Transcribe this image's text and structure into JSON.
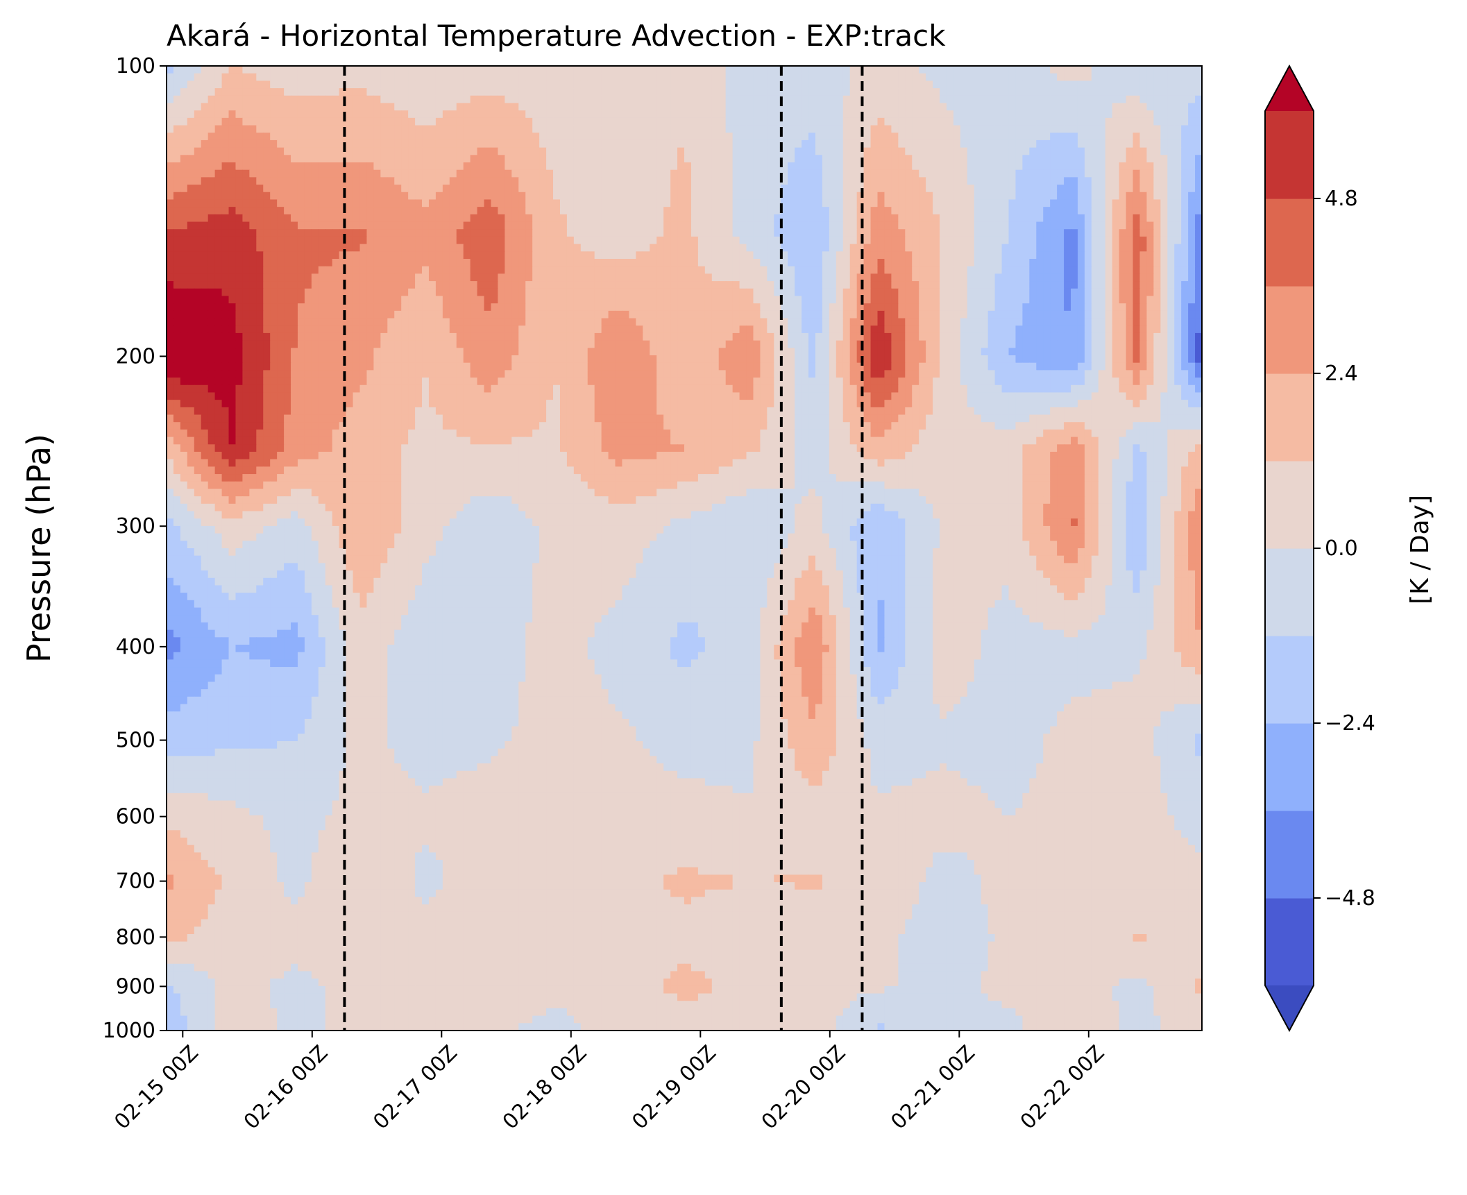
{
  "chart_data": {
    "type": "heatmap",
    "subtype": "filled-contour",
    "title": "Akará - Horizontal Temperature Advection - EXP:track",
    "ylabel": "Pressure (hPa)",
    "xlabel": "",
    "colorbar_label": "[K / Day]",
    "y_scale": "log",
    "y_inverted": true,
    "ylim": [
      1000,
      100
    ],
    "xlim": [
      "02-14 21Z",
      "02-22 21Z"
    ],
    "y_ticks": [
      100,
      200,
      300,
      400,
      500,
      600,
      700,
      800,
      900,
      1000
    ],
    "x_ticks": [
      "02-15 00Z",
      "02-16 00Z",
      "02-17 00Z",
      "02-18 00Z",
      "02-19 00Z",
      "02-20 00Z",
      "02-21 00Z",
      "02-22 00Z"
    ],
    "colorbar_ticks": [
      -4.8,
      -2.4,
      0.0,
      2.4,
      4.8
    ],
    "colorbar_tick_labels": [
      "−4.8",
      "−2.4",
      "0.0",
      "2.4",
      "4.8"
    ],
    "levels": [
      -6.0,
      -4.8,
      -3.6,
      -2.4,
      -1.2,
      0.0,
      1.2,
      2.4,
      3.6,
      4.8,
      6.0
    ],
    "level_colors": [
      "#4a5bd4",
      "#6a89f0",
      "#8fb0fc",
      "#b4cbfb",
      "#cfd9ea",
      "#e9d5ce",
      "#f5bba3",
      "#f0977b",
      "#dd674f",
      "#c53533"
    ],
    "extend_colors": {
      "under": "#3b4cc0",
      "over": "#b40426"
    },
    "colormap": "coolwarm",
    "vertical_lines": [
      "02-16 06Z",
      "02-19 15Z",
      "02-20 06Z"
    ],
    "vertical_line_style": "dashed",
    "times": [
      "02-14 21Z",
      "02-15 09Z",
      "02-15 21Z",
      "02-16 09Z",
      "02-16 21Z",
      "02-17 09Z",
      "02-17 21Z",
      "02-18 09Z",
      "02-18 21Z",
      "02-19 09Z",
      "02-19 21Z",
      "02-20 09Z",
      "02-20 21Z",
      "02-21 09Z",
      "02-21 21Z",
      "02-22 09Z",
      "02-22 21Z"
    ],
    "pressure_levels": [
      100,
      150,
      200,
      250,
      300,
      400,
      500,
      600,
      700,
      800,
      900,
      1000
    ],
    "values": [
      [
        -1.5,
        1.2,
        0.6,
        0.8,
        0.3,
        0.6,
        0.5,
        0.7,
        1.0,
        -0.6,
        -0.5,
        0.3,
        -0.3,
        -0.6,
        0.5,
        -1.0,
        -0.6
      ],
      [
        5.0,
        5.5,
        3.8,
        3.7,
        2.8,
        4.5,
        1.4,
        0.6,
        1.5,
        -0.4,
        -2.4,
        3.2,
        1.2,
        -1.2,
        -4.0,
        4.5,
        -4.5
      ],
      [
        7.5,
        6.5,
        3.5,
        2.7,
        1.3,
        3.2,
        1.2,
        3.6,
        1.3,
        3.4,
        -1.6,
        6.0,
        0.8,
        -2.4,
        -3.6,
        4.0,
        -5.5
      ],
      [
        1.4,
        6.0,
        3.0,
        1.8,
        0.9,
        1.1,
        1.0,
        2.8,
        2.4,
        1.4,
        -0.5,
        2.0,
        0.4,
        0.6,
        3.2,
        -1.5,
        1.8
      ],
      [
        -1.5,
        0.7,
        -0.6,
        2.4,
        0.4,
        -0.9,
        0.3,
        0.6,
        -0.3,
        -1.2,
        0.4,
        -2.4,
        0.2,
        0.5,
        3.8,
        -2.4,
        3.6
      ],
      [
        -4.0,
        -2.4,
        -2.8,
        0.7,
        -0.8,
        -0.5,
        0.4,
        -0.4,
        -1.5,
        -0.6,
        3.6,
        -2.6,
        0.7,
        -0.5,
        -0.4,
        -0.3,
        2.4
      ],
      [
        -1.8,
        -1.4,
        -1.2,
        0.3,
        -0.4,
        -0.2,
        0.4,
        0.2,
        -0.4,
        -0.3,
        2.2,
        -0.5,
        -0.2,
        -0.4,
        0.3,
        0.6,
        -1.6
      ],
      [
        0.9,
        0.3,
        -0.4,
        0.4,
        0.2,
        0.5,
        0.7,
        0.3,
        0.4,
        0.1,
        0.6,
        0.2,
        0.4,
        0.0,
        0.3,
        0.5,
        -0.4
      ],
      [
        2.6,
        0.9,
        -0.3,
        1.2,
        -0.3,
        0.6,
        0.4,
        0.8,
        1.4,
        1.2,
        1.3,
        0.9,
        -0.4,
        0.3,
        0.2,
        0.4,
        0.3
      ],
      [
        1.5,
        0.6,
        0.4,
        0.7,
        0.4,
        0.5,
        0.3,
        0.6,
        0.9,
        0.4,
        0.5,
        0.3,
        -0.6,
        0.2,
        0.4,
        1.3,
        0.8
      ],
      [
        -1.4,
        0.4,
        -0.3,
        0.4,
        0.5,
        0.8,
        0.2,
        0.6,
        1.5,
        0.9,
        0.4,
        0.2,
        -0.6,
        0.4,
        0.6,
        -0.4,
        1.4
      ],
      [
        -2.0,
        0.5,
        -0.2,
        0.3,
        0.6,
        0.2,
        -0.3,
        0.4,
        0.7,
        0.3,
        0.6,
        -1.4,
        -0.5,
        -0.4,
        0.9,
        -0.3,
        0.5
      ]
    ]
  }
}
